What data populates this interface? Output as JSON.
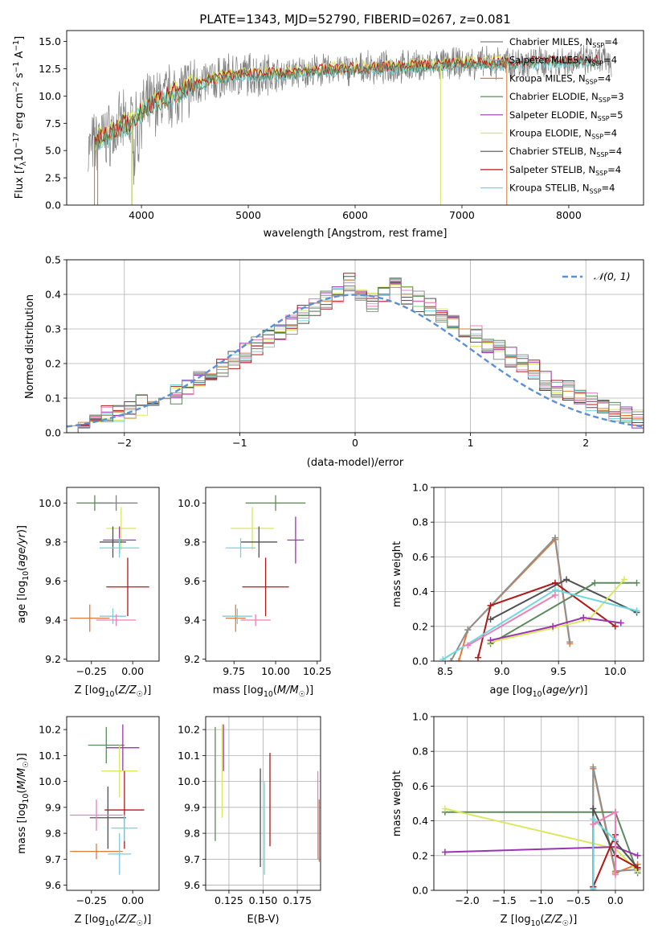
{
  "figure_title": "PLATE=1343, MJD=52790, FIBERID=0267, z=0.081",
  "colors": {
    "spectrum": "#7f7f7f",
    "Chabrier MILES": "#808080",
    "Salpeter MILES": "#b0b0b0",
    "Kroupa MILES": "#e07b39",
    "Chabrier ELODIE": "#5c8a5c",
    "Salpeter ELODIE": "#9a35b0",
    "Kroupa ELODIE": "#d8e860",
    "Chabrier STELIB": "#505050",
    "Salpeter STELIB": "#b01818",
    "Kroupa STELIB": "#70d6e0",
    "pink_extra": "#ec7fb8",
    "normal_curve": "#5b8fd6",
    "grid": "#b0b0b0"
  },
  "chart_data": [
    {
      "id": "spectrum",
      "type": "line",
      "title": "PLATE=1343, MJD=52790, FIBERID=0267, z=0.081",
      "xlabel": "wavelength [Angstrom, rest frame]",
      "ylabel": "Flux [f_λ 10^-17 erg cm^-2 s^-1 A^-1]",
      "xlim": [
        3300,
        8700
      ],
      "ylim": [
        0,
        16
      ],
      "xticks": [
        4000,
        5000,
        6000,
        7000,
        8000
      ],
      "yticks": [
        0.0,
        2.5,
        5.0,
        7.5,
        10.0,
        12.5,
        15.0
      ],
      "grid": false,
      "legend_position": "upper right",
      "legend": [
        {
          "label": "Chabrier MILES, N_SSP=4",
          "color": "#808080"
        },
        {
          "label": "Salpeter MILES, N_SSP=4",
          "color": "#b0b0b0"
        },
        {
          "label": "Kroupa MILES, N_SSP=4",
          "color": "#e07b39"
        },
        {
          "label": "Chabrier ELODIE, N_SSP=3",
          "color": "#5c8a5c"
        },
        {
          "label": "Salpeter ELODIE, N_SSP=5",
          "color": "#9a35b0"
        },
        {
          "label": "Kroupa ELODIE, N_SSP=4",
          "color": "#d8e860"
        },
        {
          "label": "Chabrier STELIB, N_SSP=4",
          "color": "#505050"
        },
        {
          "label": "Salpeter STELIB, N_SSP=4",
          "color": "#b01818"
        },
        {
          "label": "Kroupa STELIB, N_SSP=4",
          "color": "#70d6e0"
        }
      ],
      "continuum": [
        [
          3500,
          5.0
        ],
        [
          3600,
          6.0
        ],
        [
          3700,
          6.5
        ],
        [
          3800,
          7.2
        ],
        [
          3900,
          7.5
        ],
        [
          4000,
          8.5
        ],
        [
          4100,
          9.3
        ],
        [
          4300,
          10.2
        ],
        [
          4500,
          11.0
        ],
        [
          4800,
          11.8
        ],
        [
          5000,
          12.0
        ],
        [
          5300,
          12.0
        ],
        [
          5600,
          12.3
        ],
        [
          6000,
          12.5
        ],
        [
          6300,
          12.6
        ],
        [
          6700,
          12.8
        ],
        [
          7000,
          13.0
        ],
        [
          7400,
          13.0
        ],
        [
          8000,
          13.2
        ],
        [
          8400,
          13.2
        ]
      ]
    },
    {
      "id": "residuals",
      "type": "histogram",
      "xlabel": "(data-model)/error",
      "ylabel": "Normed distribution",
      "xlim": [
        -2.5,
        2.5
      ],
      "ylim": [
        0,
        0.5
      ],
      "xticks": [
        -2,
        -1,
        0,
        1,
        2
      ],
      "yticks": [
        0.0,
        0.1,
        0.2,
        0.3,
        0.4,
        0.5
      ],
      "grid": true,
      "legend_position": "upper right",
      "legend": [
        {
          "label": "𝒩(0, 1)",
          "color": "#5b8fd6",
          "style": "dashed"
        }
      ],
      "bin_width": 0.1,
      "series": [
        {
          "name": "Kroupa MILES",
          "color": "#e07b39",
          "values": [
            0.02,
            0.03,
            0.04,
            0.05,
            0.06,
            0.07,
            0.08,
            0.09,
            0.1,
            0.11,
            0.13,
            0.15,
            0.17,
            0.19,
            0.21,
            0.23,
            0.25,
            0.27,
            0.29,
            0.31,
            0.34,
            0.36,
            0.38,
            0.4,
            0.44,
            0.4,
            0.38,
            0.4,
            0.42,
            0.4,
            0.38,
            0.36,
            0.34,
            0.33,
            0.3,
            0.28,
            0.26,
            0.24,
            0.22,
            0.2,
            0.18,
            0.15,
            0.13,
            0.12,
            0.1,
            0.09,
            0.07,
            0.06,
            0.05,
            0.04
          ]
        }
      ]
    },
    {
      "id": "age_vs_Z",
      "type": "errorbar",
      "xlabel": "Z [log10(Z/Z☉)]",
      "ylabel": "age  [log10(age/yr)]",
      "xlim": [
        -0.4,
        0.16
      ],
      "ylim": [
        9.19,
        10.08
      ],
      "xticks": [
        -0.25,
        0.0
      ],
      "yticks": [
        9.2,
        9.4,
        9.6,
        9.8,
        10.0
      ],
      "grid": false,
      "points": [
        {
          "x": -0.23,
          "y": 10.0,
          "xerr": 0.11,
          "yerr": 0.04,
          "c": "#5c8a5c"
        },
        {
          "x": -0.1,
          "y": 10.0,
          "xerr": 0.13,
          "yerr": 0.04,
          "c": "#808080"
        },
        {
          "x": -0.07,
          "y": 9.87,
          "xerr": 0.09,
          "yerr": 0.11,
          "c": "#d8e860"
        },
        {
          "x": -0.08,
          "y": 9.81,
          "xerr": 0.1,
          "yerr": 0.07,
          "c": "#9a35b0"
        },
        {
          "x": -0.12,
          "y": 9.8,
          "xerr": 0.08,
          "yerr": 0.08,
          "c": "#505050"
        },
        {
          "x": -0.08,
          "y": 9.77,
          "xerr": 0.12,
          "yerr": 0.05,
          "c": "#70d6e0"
        },
        {
          "x": -0.03,
          "y": 9.57,
          "xerr": 0.13,
          "yerr": 0.15,
          "c": "#b01818"
        },
        {
          "x": -0.26,
          "y": 9.41,
          "xerr": 0.12,
          "yerr": 0.07,
          "c": "#e07b39"
        },
        {
          "x": -0.12,
          "y": 9.42,
          "xerr": 0.08,
          "yerr": 0.04,
          "c": "#7ec9d8"
        },
        {
          "x": -0.1,
          "y": 9.4,
          "xerr": 0.12,
          "yerr": 0.03,
          "c": "#ec7fb8"
        }
      ]
    },
    {
      "id": "age_vs_mass",
      "type": "errorbar",
      "xlabel": "mass [log10(M/M☉)]",
      "ylabel": "",
      "xlim": [
        9.58,
        10.27
      ],
      "ylim": [
        9.19,
        10.08
      ],
      "xticks": [
        9.75,
        10.0,
        10.25
      ],
      "yticks": [
        9.2,
        9.4,
        9.6,
        9.8,
        10.0
      ],
      "grid": false,
      "points": [
        {
          "x": 10.0,
          "y": 10.0,
          "xerr": 0.18,
          "yerr": 0.04,
          "c": "#5c8a5c"
        },
        {
          "x": 9.86,
          "y": 9.87,
          "xerr": 0.13,
          "yerr": 0.11,
          "c": "#d8e860"
        },
        {
          "x": 10.12,
          "y": 9.81,
          "xerr": 0.05,
          "yerr": 0.12,
          "c": "#9a35b0"
        },
        {
          "x": 9.9,
          "y": 9.8,
          "xerr": 0.11,
          "yerr": 0.08,
          "c": "#505050"
        },
        {
          "x": 9.79,
          "y": 9.77,
          "xerr": 0.09,
          "yerr": 0.05,
          "c": "#70d6e0"
        },
        {
          "x": 9.94,
          "y": 9.57,
          "xerr": 0.14,
          "yerr": 0.15,
          "c": "#b01818"
        },
        {
          "x": 9.76,
          "y": 9.41,
          "xerr": 0.06,
          "yerr": 0.07,
          "c": "#e07b39"
        },
        {
          "x": 9.77,
          "y": 9.42,
          "xerr": 0.09,
          "yerr": 0.04,
          "c": "#7ec9d8"
        },
        {
          "x": 9.88,
          "y": 9.4,
          "xerr": 0.09,
          "yerr": 0.03,
          "c": "#ec7fb8"
        }
      ]
    },
    {
      "id": "massweight_vs_age",
      "type": "line",
      "xlabel": "age  [log10(age/yr)]",
      "ylabel": "mass weight",
      "xlim": [
        8.4,
        10.25
      ],
      "ylim": [
        0,
        1.0
      ],
      "xticks": [
        8.5,
        9.0,
        9.5,
        10.0
      ],
      "yticks": [
        0.0,
        0.2,
        0.4,
        0.6,
        0.8,
        1.0
      ],
      "grid": true,
      "series": [
        {
          "name": "Kroupa MILES",
          "color": "#e07b39",
          "x": [
            8.62,
            8.7,
            9.47,
            9.6
          ],
          "y": [
            0.0,
            0.18,
            0.7,
            0.1
          ]
        },
        {
          "name": "Chabrier MILES",
          "color": "#909090",
          "x": [
            8.55,
            8.7,
            9.47,
            9.6
          ],
          "y": [
            0.0,
            0.18,
            0.71,
            0.11
          ]
        },
        {
          "name": "Salpeter STELIB",
          "color": "#b01818",
          "x": [
            8.79,
            8.9,
            9.47,
            10.0
          ],
          "y": [
            0.02,
            0.32,
            0.45,
            0.2
          ]
        },
        {
          "name": "Chabrier STELIB",
          "color": "#505050",
          "x": [
            8.9,
            9.57,
            10.19
          ],
          "y": [
            0.24,
            0.47,
            0.28
          ]
        },
        {
          "name": "Chabrier ELODIE",
          "color": "#5c8a5c",
          "x": [
            8.9,
            9.82,
            10.19
          ],
          "y": [
            0.1,
            0.45,
            0.45
          ]
        },
        {
          "name": "Kroupa ELODIE",
          "color": "#d8e860",
          "x": [
            8.9,
            9.45,
            9.77,
            10.08
          ],
          "y": [
            0.11,
            0.19,
            0.24,
            0.47
          ]
        },
        {
          "name": "Salpeter ELODIE",
          "color": "#9a35b0",
          "x": [
            8.9,
            9.45,
            9.72,
            10.05
          ],
          "y": [
            0.12,
            0.2,
            0.25,
            0.22
          ]
        },
        {
          "name": "Kroupa STELIB",
          "color": "#70d6e0",
          "x": [
            8.48,
            9.47,
            10.19
          ],
          "y": [
            0.01,
            0.41,
            0.29
          ]
        },
        {
          "name": "pink",
          "color": "#ec7fb8",
          "x": [
            8.7,
            9.47
          ],
          "y": [
            0.09,
            0.38
          ]
        }
      ]
    },
    {
      "id": "mass_vs_Z",
      "type": "errorbar",
      "xlabel": "Z [log10(Z/Z☉)]",
      "ylabel": "mass [log10(M/M☉)]",
      "xlim": [
        -0.4,
        0.16
      ],
      "ylim": [
        9.58,
        10.25
      ],
      "xticks": [
        -0.25,
        0.0
      ],
      "yticks": [
        9.6,
        9.7,
        9.8,
        9.9,
        10.0,
        10.1,
        10.2
      ],
      "grid": false,
      "points": [
        {
          "x": -0.16,
          "y": 10.14,
          "xerr": 0.11,
          "yerr": 0.07,
          "c": "#5c8a5c"
        },
        {
          "x": -0.06,
          "y": 10.13,
          "xerr": 0.1,
          "yerr": 0.09,
          "c": "#9a35b0"
        },
        {
          "x": -0.08,
          "y": 10.04,
          "xerr": 0.11,
          "yerr": 0.1,
          "c": "#d8e860"
        },
        {
          "x": -0.05,
          "y": 9.89,
          "xerr": 0.12,
          "yerr": 0.15,
          "c": "#b01818"
        },
        {
          "x": -0.15,
          "y": 9.86,
          "xerr": 0.11,
          "yerr": 0.12,
          "c": "#505050"
        },
        {
          "x": -0.22,
          "y": 9.87,
          "xerr": 0.16,
          "yerr": 0.06,
          "c": "#ec7fb8"
        },
        {
          "x": -0.05,
          "y": 9.82,
          "xerr": 0.08,
          "yerr": 0.05,
          "c": "#70d6e0"
        },
        {
          "x": -0.22,
          "y": 9.73,
          "xerr": 0.16,
          "yerr": 0.03,
          "c": "#e07b39"
        },
        {
          "x": -0.08,
          "y": 9.72,
          "xerr": 0.07,
          "yerr": 0.08,
          "c": "#7ec9d8"
        }
      ]
    },
    {
      "id": "mass_vs_EBV",
      "type": "errorbar",
      "xlabel": "E(B-V)",
      "ylabel": "",
      "xlim": [
        0.108,
        0.192
      ],
      "ylim": [
        9.58,
        10.25
      ],
      "xticks": [
        0.125,
        0.15,
        0.175
      ],
      "yticks": [
        9.6,
        9.7,
        9.8,
        9.9,
        10.0,
        10.1,
        10.2
      ],
      "grid": true,
      "points": [
        {
          "x": 0.115,
          "y": 9.99,
          "xerr": 0,
          "yerr": 0.22,
          "c": "#5c8a5c"
        },
        {
          "x": 0.121,
          "y": 10.13,
          "xerr": 0,
          "yerr": 0.09,
          "c": "#9a35b0"
        },
        {
          "x": 0.12,
          "y": 10.04,
          "xerr": 0,
          "yerr": 0.18,
          "c": "#d8e860"
        },
        {
          "x": 0.148,
          "y": 9.86,
          "xerr": 0,
          "yerr": 0.19,
          "c": "#505050"
        },
        {
          "x": 0.151,
          "y": 9.82,
          "xerr": 0,
          "yerr": 0.18,
          "c": "#70d6e0"
        },
        {
          "x": 0.155,
          "y": 9.93,
          "xerr": 0,
          "yerr": 0.18,
          "c": "#b01818"
        },
        {
          "x": 0.19,
          "y": 9.87,
          "xerr": 0,
          "yerr": 0.17,
          "c": "#ec7fb8"
        },
        {
          "x": 0.191,
          "y": 9.81,
          "xerr": 0,
          "yerr": 0.12,
          "c": "#e07b39"
        }
      ]
    },
    {
      "id": "massweight_vs_Z",
      "type": "line",
      "xlabel": "Z [log10(Z/Z☉)]",
      "ylabel": "mass weight",
      "xlim": [
        -2.45,
        0.38
      ],
      "ylim": [
        0,
        1.0
      ],
      "xticks": [
        -2.0,
        -1.5,
        -1.0,
        -0.5,
        0.0
      ],
      "yticks": [
        0.0,
        0.2,
        0.4,
        0.6,
        0.8,
        1.0
      ],
      "grid": true,
      "series": [
        {
          "name": "Kroupa MILES",
          "color": "#e07b39",
          "x": [
            -0.3,
            -0.3,
            0.0,
            0.3
          ],
          "y": [
            0.0,
            0.7,
            0.1,
            0.15
          ]
        },
        {
          "name": "Chabrier MILES",
          "color": "#909090",
          "x": [
            -0.3,
            -0.3,
            0.0,
            0.3
          ],
          "y": [
            0.02,
            0.71,
            0.11,
            0.12
          ]
        },
        {
          "name": "Chabrier ELODIE",
          "color": "#5c8a5c",
          "x": [
            -2.3,
            0.0,
            0.3
          ],
          "y": [
            0.45,
            0.45,
            0.1
          ]
        },
        {
          "name": "Kroupa ELODIE",
          "color": "#d8e860",
          "x": [
            -2.3,
            0.0,
            0.3
          ],
          "y": [
            0.47,
            0.24,
            0.11
          ]
        },
        {
          "name": "Salpeter ELODIE",
          "color": "#9a35b0",
          "x": [
            -2.3,
            0.0,
            0.3
          ],
          "y": [
            0.22,
            0.25,
            0.2
          ]
        },
        {
          "name": "Chabrier STELIB",
          "color": "#505050",
          "x": [
            -0.3,
            -0.3,
            0.0,
            0.0,
            0.3
          ],
          "y": [
            0.02,
            0.47,
            0.2,
            0.28,
            0.13
          ]
        },
        {
          "name": "Salpeter STELIB",
          "color": "#b01818",
          "x": [
            -0.3,
            0.0,
            0.0,
            0.3
          ],
          "y": [
            0.02,
            0.32,
            0.2,
            0.13
          ]
        },
        {
          "name": "Kroupa STELIB",
          "color": "#70d6e0",
          "x": [
            -0.3,
            -0.3,
            0.0
          ],
          "y": [
            0.01,
            0.41,
            0.29
          ]
        },
        {
          "name": "pink",
          "color": "#ec7fb8",
          "x": [
            -0.3,
            0.0,
            0.0
          ],
          "y": [
            0.38,
            0.45,
            0.09
          ]
        }
      ]
    }
  ]
}
